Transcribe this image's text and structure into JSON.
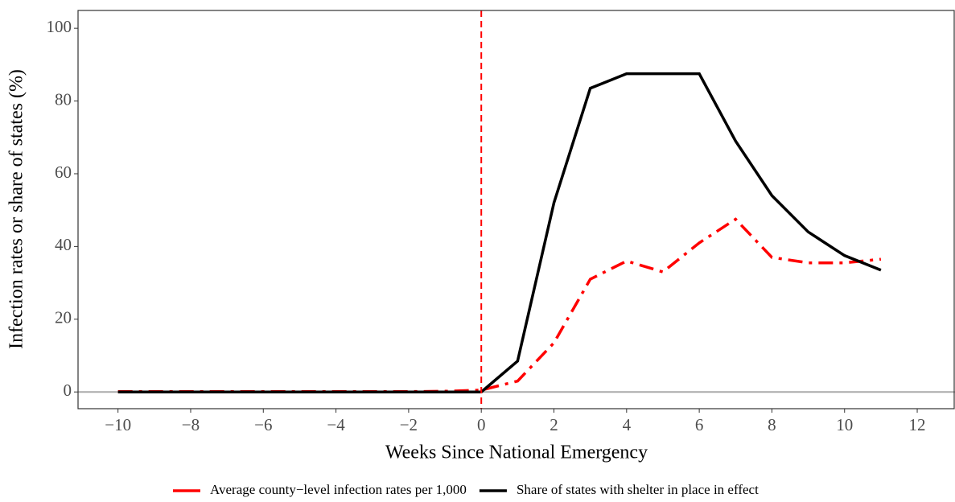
{
  "chart_data": {
    "type": "line",
    "x_label": "Weeks Since National Emergency",
    "y_label": "Infection rates or share of states (%)",
    "x": [
      -10,
      -9,
      -8,
      -7,
      -6,
      -5,
      -4,
      -3,
      -2,
      -1,
      0,
      1,
      2,
      3,
      4,
      5,
      6,
      7,
      8,
      9,
      10,
      11
    ],
    "series": [
      {
        "name": "Average county−level infection rates per 1,000",
        "color": "#ff0000",
        "dash": "dashdot",
        "values": [
          0.1,
          0.1,
          0.1,
          0.1,
          0.1,
          0.1,
          0.1,
          0.1,
          0.1,
          0.2,
          0.5,
          3,
          13.5,
          31,
          36,
          33,
          41,
          47.5,
          37,
          35.5,
          35.5,
          36.5
        ]
      },
      {
        "name": "Share of states with shelter in place in effect",
        "color": "#000000",
        "dash": "solid",
        "values": [
          0,
          0,
          0,
          0,
          0,
          0,
          0,
          0,
          0,
          0,
          0,
          8.5,
          52,
          83.5,
          87.5,
          87.5,
          87.5,
          69,
          54,
          44,
          37.5,
          33.5
        ]
      }
    ],
    "xlim": [
      -11.1,
      13.04
    ],
    "ylim": [
      -4.6,
      104.9
    ],
    "xticks": [
      {
        "value": -10,
        "label": "−10"
      },
      {
        "value": -8,
        "label": "−8"
      },
      {
        "value": -6,
        "label": "−6"
      },
      {
        "value": -4,
        "label": "−4"
      },
      {
        "value": -2,
        "label": "−2"
      },
      0,
      2,
      4,
      6,
      8,
      10,
      12
    ],
    "yticks": [
      0,
      20,
      40,
      60,
      80,
      100
    ],
    "vline": {
      "x": 0,
      "color": "#ff0000"
    },
    "hline": {
      "y": 0,
      "color": "#aaaaaa"
    },
    "legend": "bottom"
  }
}
